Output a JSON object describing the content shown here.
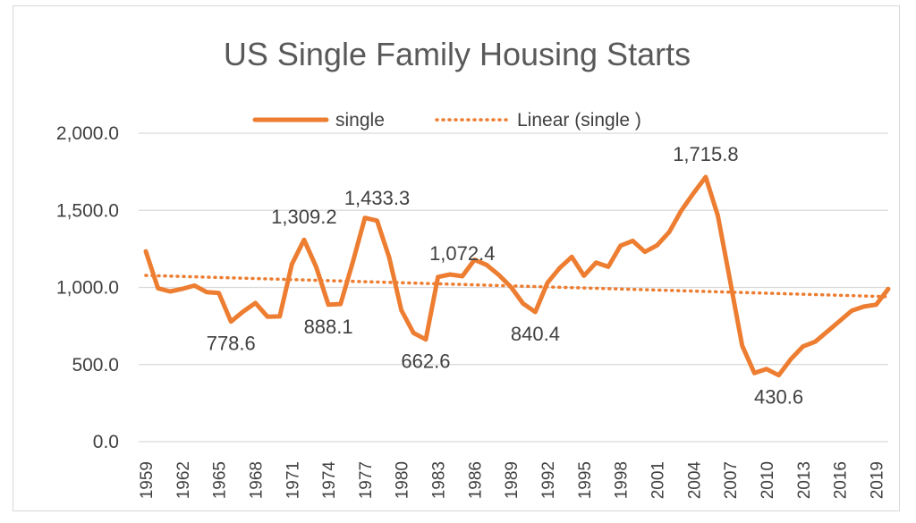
{
  "chart_data": {
    "type": "line",
    "title": "US Single Family Housing Starts",
    "xlabel": "",
    "ylabel": "",
    "ylim": [
      0,
      2000
    ],
    "y_ticks": [
      "0.0",
      "500.0",
      "1,000.0",
      "1,500.0",
      "2,000.0"
    ],
    "y_tick_values": [
      0,
      500,
      1000,
      1500,
      2000
    ],
    "grid": "horizontal",
    "legend_position": "top",
    "x_tick_labels": [
      "1959",
      "1962",
      "1965",
      "1968",
      "1971",
      "1974",
      "1977",
      "1980",
      "1983",
      "1986",
      "1989",
      "1992",
      "1995",
      "1998",
      "2001",
      "2004",
      "2007",
      "2010",
      "2013",
      "2016",
      "2019"
    ],
    "x": [
      1959,
      1960,
      1961,
      1962,
      1963,
      1964,
      1965,
      1966,
      1967,
      1968,
      1969,
      1970,
      1971,
      1972,
      1973,
      1974,
      1975,
      1976,
      1977,
      1978,
      1979,
      1980,
      1981,
      1982,
      1983,
      1984,
      1985,
      1986,
      1987,
      1988,
      1989,
      1990,
      1991,
      1992,
      1993,
      1994,
      1995,
      1996,
      1997,
      1998,
      1999,
      2000,
      2001,
      2002,
      2003,
      2004,
      2005,
      2006,
      2007,
      2008,
      2009,
      2010,
      2011,
      2012,
      2013,
      2014,
      2015,
      2016,
      2017,
      2018,
      2019,
      2020
    ],
    "series": [
      {
        "name": "single",
        "color": "#ed7d31",
        "values": [
          1234,
          995,
          974,
          991,
          1012,
          970,
          964,
          778.6,
          844,
          899,
          810,
          812,
          1151,
          1309.2,
          1132,
          888.1,
          892,
          1162,
          1451,
          1433.3,
          1194,
          852,
          705,
          662.6,
          1068,
          1084,
          1072.4,
          1179,
          1146,
          1081,
          1003,
          895,
          840.4,
          1030,
          1126,
          1198,
          1076,
          1161,
          1134,
          1271,
          1302,
          1231,
          1273,
          1359,
          1499,
          1611,
          1715.8,
          1465,
          1046,
          622,
          445,
          471,
          430.6,
          535,
          618,
          648,
          715,
          782,
          849,
          876,
          888,
          990
        ]
      }
    ],
    "trendline": {
      "name": "Linear (single )",
      "color": "#ed7d31",
      "start": [
        1959,
        1078
      ],
      "end": [
        2020,
        940
      ]
    },
    "annotations": [
      {
        "x": 1966,
        "y": 778.6,
        "text": "778.6",
        "pos": "below"
      },
      {
        "x": 1972,
        "y": 1309.2,
        "text": "1,309.2",
        "pos": "above"
      },
      {
        "x": 1974,
        "y": 888.1,
        "text": "888.1",
        "pos": "below"
      },
      {
        "x": 1978,
        "y": 1433.3,
        "text": "1,433.3",
        "pos": "above"
      },
      {
        "x": 1982,
        "y": 662.6,
        "text": "662.6",
        "pos": "below"
      },
      {
        "x": 1985,
        "y": 1072.4,
        "text": "1,072.4",
        "pos": "above"
      },
      {
        "x": 1991,
        "y": 840.4,
        "text": "840.4",
        "pos": "below"
      },
      {
        "x": 2005,
        "y": 1715.8,
        "text": "1,715.8",
        "pos": "above"
      },
      {
        "x": 2011,
        "y": 430.6,
        "text": "430.6",
        "pos": "below"
      }
    ]
  }
}
